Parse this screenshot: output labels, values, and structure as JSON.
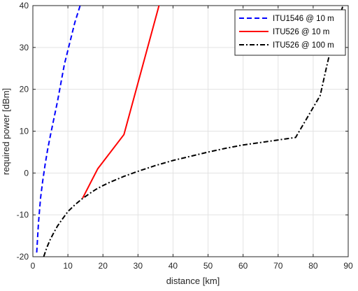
{
  "chart_data": {
    "type": "line",
    "title": "",
    "xlabel": "distance [km]",
    "ylabel": "required power [dBm]",
    "xlim": [
      0,
      90
    ],
    "ylim": [
      -20,
      40
    ],
    "x_ticks": [
      0,
      10,
      20,
      30,
      40,
      50,
      60,
      70,
      80,
      90
    ],
    "y_ticks": [
      -20,
      -10,
      0,
      10,
      20,
      30,
      40
    ],
    "grid": true,
    "legend_position": "top-right",
    "series": [
      {
        "name": "ITU1546 @ 10 m",
        "color": "#0000ff",
        "style": "dashed",
        "x": [
          1.1,
          1.6,
          2.2,
          2.8,
          3.5,
          4.2,
          5.0,
          6.0,
          7.0,
          8.0,
          9.0,
          10.5,
          12.0,
          13.5
        ],
        "y": [
          -19,
          -12,
          -6,
          -2,
          2,
          5.5,
          9,
          13,
          17,
          21.5,
          26,
          31,
          36,
          40
        ]
      },
      {
        "name": "ITU526 @ 10 m",
        "color": "#ff0000",
        "style": "solid",
        "x": [
          14.2,
          18.5,
          26.0,
          36.0
        ],
        "y": [
          -6,
          1,
          9.2,
          40
        ]
      },
      {
        "name": "ITU526 @ 100 m",
        "color": "#000000",
        "style": "dashdot",
        "x": [
          3.1,
          4,
          5,
          6,
          7,
          8,
          10,
          12,
          14,
          16,
          18,
          20,
          22,
          24,
          26,
          28,
          30,
          35,
          40,
          45,
          50,
          55,
          60,
          65,
          70,
          75,
          82,
          84,
          86,
          88.5
        ],
        "y": [
          -20,
          -17.8,
          -15.8,
          -14.2,
          -12.7,
          -11.5,
          -9.2,
          -7.6,
          -6.2,
          -5,
          -3.9,
          -3,
          -2.2,
          -1.5,
          -0.8,
          -0.2,
          0.4,
          1.8,
          3,
          4,
          5,
          5.9,
          6.7,
          7.3,
          7.9,
          8.5,
          18.5,
          26,
          33,
          40
        ]
      }
    ]
  }
}
